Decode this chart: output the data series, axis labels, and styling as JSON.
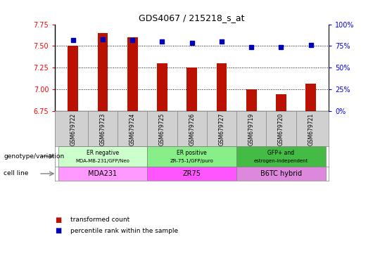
{
  "title": "GDS4067 / 215218_s_at",
  "samples": [
    "GSM679722",
    "GSM679723",
    "GSM679724",
    "GSM679725",
    "GSM679726",
    "GSM679727",
    "GSM679719",
    "GSM679720",
    "GSM679721"
  ],
  "bar_values": [
    7.5,
    7.65,
    7.6,
    7.3,
    7.25,
    7.3,
    7.0,
    6.95,
    7.07
  ],
  "percentile_values": [
    82,
    83,
    82,
    80,
    79,
    80,
    74,
    74,
    76
  ],
  "ylim_left": [
    6.75,
    7.75
  ],
  "ylim_right": [
    0,
    100
  ],
  "yticks_left": [
    6.75,
    7.0,
    7.25,
    7.5,
    7.75
  ],
  "yticks_right": [
    0,
    25,
    50,
    75,
    100
  ],
  "bar_color": "#bb1100",
  "dot_color": "#0000bb",
  "groups": [
    {
      "label_top": "ER negative",
      "label_bot": "MDA-MB-231/GFP/Neo",
      "cell_line": "MDA231",
      "indices": [
        0,
        1,
        2
      ],
      "geno_color": "#ccffcc",
      "cell_color": "#ff99ff"
    },
    {
      "label_top": "ER positive",
      "label_bot": "ZR-75-1/GFP/puro",
      "cell_line": "ZR75",
      "indices": [
        3,
        4,
        5
      ],
      "geno_color": "#88ee88",
      "cell_color": "#ff55ff"
    },
    {
      "label_top": "GFP+ and",
      "label_bot": "estrogen-independent",
      "cell_line": "B6TC hybrid",
      "indices": [
        6,
        7,
        8
      ],
      "geno_color": "#44bb44",
      "cell_color": "#dd88dd"
    }
  ],
  "legend_items": [
    {
      "label": "transformed count",
      "color": "#bb1100"
    },
    {
      "label": "percentile rank within the sample",
      "color": "#0000bb"
    }
  ],
  "tick_bg": "#d0d0d0",
  "bar_width": 0.35
}
